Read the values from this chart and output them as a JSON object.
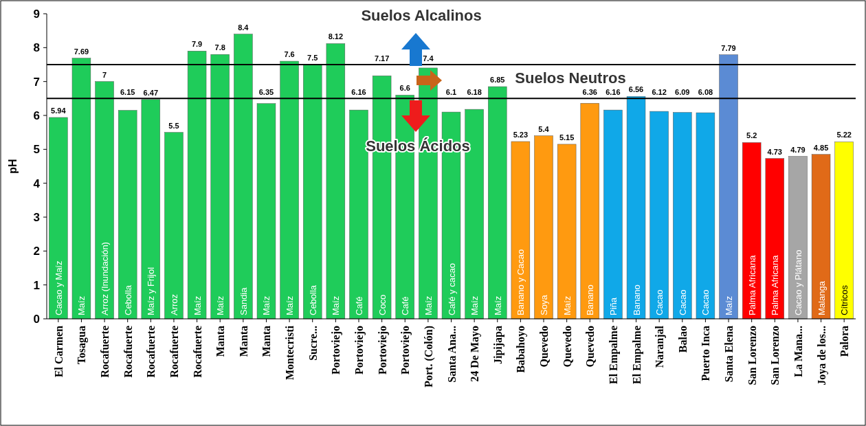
{
  "chart_data": {
    "type": "bar",
    "ylabel": "pH",
    "categories": [
      "El Carmen",
      "Tosagua",
      "Rocafuerte",
      "Rocafuerte",
      "Rocafuerte",
      "Rocafuerte",
      "Rocafuerte",
      "Manta",
      "Manta",
      "Manta",
      "Montecristi",
      "Sucre...",
      "Portoviejo",
      "Portoviejo",
      "Portoviejo",
      "Portoviejo",
      "Port. (Colón)",
      "Santa Ana...",
      "24 De Mayo",
      "Jipijapa",
      "Babahoyo",
      "Quevedo",
      "Quevedo",
      "Quevedo",
      "El Empalme",
      "El Empalme",
      "Naranjal",
      "Balao",
      "Puerto Inca",
      "Santa Elena",
      "San Lorenzo",
      "San Lorenzo",
      "La Mana...",
      "Joya de los...",
      "Palora"
    ],
    "values": [
      5.94,
      7.69,
      7,
      6.15,
      6.47,
      5.5,
      7.9,
      7.8,
      8.4,
      6.35,
      7.6,
      7.5,
      8.12,
      6.16,
      7.17,
      6.6,
      7.4,
      6.1,
      6.18,
      6.85,
      5.23,
      5.4,
      5.15,
      6.36,
      6.16,
      6.56,
      6.12,
      6.09,
      6.08,
      7.79,
      5.2,
      4.73,
      4.79,
      4.85,
      5.22
    ],
    "colors": [
      "#1fcc5a",
      "#1fcc5a",
      "#1fcc5a",
      "#1fcc5a",
      "#1fcc5a",
      "#1fcc5a",
      "#1fcc5a",
      "#1fcc5a",
      "#1fcc5a",
      "#1fcc5a",
      "#1fcc5a",
      "#1fcc5a",
      "#1fcc5a",
      "#1fcc5a",
      "#1fcc5a",
      "#1fcc5a",
      "#1fcc5a",
      "#1fcc5a",
      "#1fcc5a",
      "#1fcc5a",
      "#ff9a10",
      "#ff9a10",
      "#ff9a10",
      "#ff9a10",
      "#10a8e8",
      "#10a8e8",
      "#10a8e8",
      "#10a8e8",
      "#10a8e8",
      "#5b8bd4",
      "#ff0000",
      "#ff0000",
      "#a6a6a6",
      "#e06a18",
      "#ffff00"
    ],
    "data_labels": true,
    "ylim": [
      0,
      9
    ],
    "yticks": [
      0,
      1,
      2,
      3,
      4,
      5,
      6,
      7,
      8,
      9
    ],
    "ref_lines": [
      {
        "axis": "y",
        "value": 7.5,
        "color": "#000000"
      },
      {
        "axis": "y",
        "value": 6.5,
        "color": "#000000"
      }
    ],
    "annotations": [
      "Cacao y Maíz",
      "Maíz",
      "Arroz (Inundación)",
      "Cebolla",
      "Maíz y Frijol",
      "Arroz",
      "Maíz",
      "Maíz",
      "Sandia",
      "Maíz",
      "Maíz",
      "Cebolla",
      "Maíz",
      "Café",
      "Coco",
      "Café",
      "Maíz",
      "Café y cacao",
      "Maíz",
      "Maíz",
      "Banano y Cacao",
      "Soya",
      "Maíz",
      "Banano",
      "Piña",
      "Banano",
      "Cacao",
      "Cacao",
      "Cacao",
      "Maíz",
      "Palma Africana",
      "Palma Africana",
      "Cacao y Plátano",
      "Malanga",
      "Cítricos",
      "Suelos Alcalinos",
      "Suelos Neutros",
      "Suelos Ácidos"
    ]
  }
}
